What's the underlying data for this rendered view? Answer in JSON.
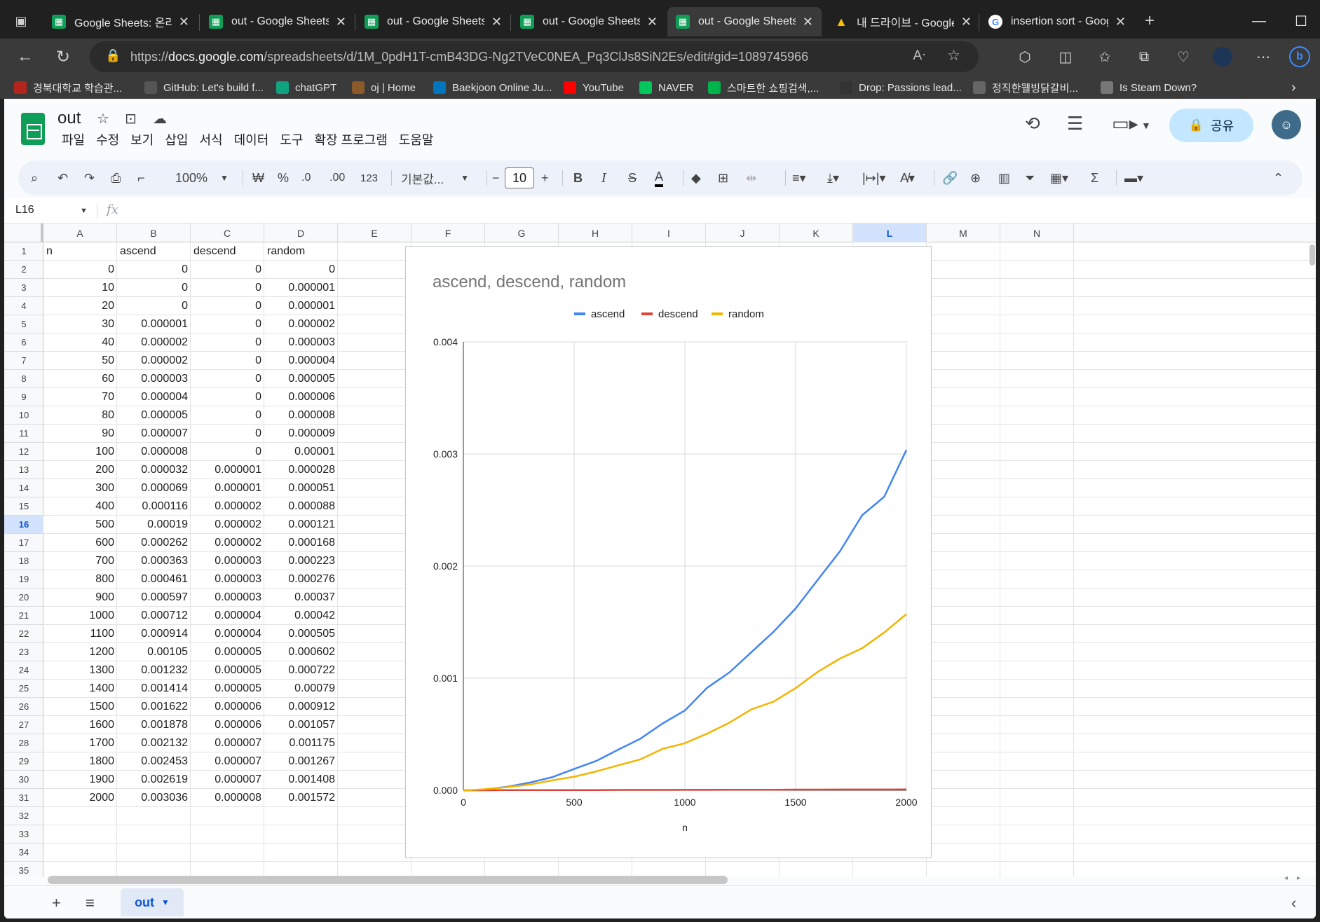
{
  "browser": {
    "tabs": [
      {
        "title": "Google Sheets: 온라인",
        "icon": "sheets",
        "active": false
      },
      {
        "title": "out - Google Sheets",
        "icon": "sheets",
        "active": false
      },
      {
        "title": "out - Google Sheets",
        "icon": "sheets",
        "active": false
      },
      {
        "title": "out - Google Sheets",
        "icon": "sheets",
        "active": false
      },
      {
        "title": "out - Google Sheets",
        "icon": "sheets",
        "active": true
      },
      {
        "title": "내 드라이브 - Google",
        "icon": "drive",
        "active": false
      },
      {
        "title": "insertion sort - Googl",
        "icon": "google",
        "active": false
      }
    ],
    "url_prefix": "https://",
    "url_domain": "docs.google.com",
    "url_path": "/spreadsheets/d/1M_0pdH1T-cmB43DG-Ng2TVeC0NEA_Pq3ClJs8SiN2Es/edit#gid=1089745966",
    "bookmarks": [
      {
        "label": "경북대학교 학습관...",
        "color": "#b3261e"
      },
      {
        "label": "GitHub: Let's build f...",
        "color": "#555555"
      },
      {
        "label": "chatGPT",
        "color": "#10a37f"
      },
      {
        "label": "oj | Home",
        "color": "#8b5a2b"
      },
      {
        "label": "Baekjoon Online Ju...",
        "color": "#0076c0"
      },
      {
        "label": "YouTube",
        "color": "#ff0000"
      },
      {
        "label": "NAVER",
        "color": "#03c75a"
      },
      {
        "label": "스마트한 쇼핑검색,...",
        "color": "#00b34a"
      },
      {
        "label": "Drop: Passions lead...",
        "color": "#333333"
      },
      {
        "label": "정직한웰빙닭갈비...",
        "color": "#666666"
      },
      {
        "label": "Is Steam Down?",
        "color": "#777777"
      }
    ]
  },
  "app": {
    "doc_title": "out",
    "menus": [
      "파일",
      "수정",
      "보기",
      "삽입",
      "서식",
      "데이터",
      "도구",
      "확장 프로그램",
      "도움말"
    ],
    "share_label": "공유",
    "toolbar": {
      "zoom": "100%",
      "currency": "₩",
      "percent": "%",
      "dec_decrease": ".0",
      "dec_increase": ".00",
      "number_format": "123",
      "font": "기본값...",
      "font_size": "10"
    },
    "name_box": "L16",
    "fx_label": "fx",
    "sheet_name": "out"
  },
  "grid": {
    "columns": [
      "A",
      "B",
      "C",
      "D",
      "E",
      "F",
      "G",
      "H",
      "I",
      "J",
      "K",
      "L",
      "M",
      "N"
    ],
    "selected_column": "L",
    "selected_row": 16,
    "row_count": 35,
    "header": [
      "n",
      "ascend",
      "descend",
      "random"
    ],
    "rows": [
      [
        "0",
        "0",
        "0",
        "0"
      ],
      [
        "10",
        "0",
        "0",
        "0.000001"
      ],
      [
        "20",
        "0",
        "0",
        "0.000001"
      ],
      [
        "30",
        "0.000001",
        "0",
        "0.000002"
      ],
      [
        "40",
        "0.000002",
        "0",
        "0.000003"
      ],
      [
        "50",
        "0.000002",
        "0",
        "0.000004"
      ],
      [
        "60",
        "0.000003",
        "0",
        "0.000005"
      ],
      [
        "70",
        "0.000004",
        "0",
        "0.000006"
      ],
      [
        "80",
        "0.000005",
        "0",
        "0.000008"
      ],
      [
        "90",
        "0.000007",
        "0",
        "0.000009"
      ],
      [
        "100",
        "0.000008",
        "0",
        "0.00001"
      ],
      [
        "200",
        "0.000032",
        "0.000001",
        "0.000028"
      ],
      [
        "300",
        "0.000069",
        "0.000001",
        "0.000051"
      ],
      [
        "400",
        "0.000116",
        "0.000002",
        "0.000088"
      ],
      [
        "500",
        "0.00019",
        "0.000002",
        "0.000121"
      ],
      [
        "600",
        "0.000262",
        "0.000002",
        "0.000168"
      ],
      [
        "700",
        "0.000363",
        "0.000003",
        "0.000223"
      ],
      [
        "800",
        "0.000461",
        "0.000003",
        "0.000276"
      ],
      [
        "900",
        "0.000597",
        "0.000003",
        "0.00037"
      ],
      [
        "1000",
        "0.000712",
        "0.000004",
        "0.00042"
      ],
      [
        "1100",
        "0.000914",
        "0.000004",
        "0.000505"
      ],
      [
        "1200",
        "0.00105",
        "0.000005",
        "0.000602"
      ],
      [
        "1300",
        "0.001232",
        "0.000005",
        "0.000722"
      ],
      [
        "1400",
        "0.001414",
        "0.000005",
        "0.00079"
      ],
      [
        "1500",
        "0.001622",
        "0.000006",
        "0.000912"
      ],
      [
        "1600",
        "0.001878",
        "0.000006",
        "0.001057"
      ],
      [
        "1700",
        "0.002132",
        "0.000007",
        "0.001175"
      ],
      [
        "1800",
        "0.002453",
        "0.000007",
        "0.001267"
      ],
      [
        "1900",
        "0.002619",
        "0.000007",
        "0.001408"
      ],
      [
        "2000",
        "0.003036",
        "0.000008",
        "0.001572"
      ]
    ]
  },
  "chart_data": {
    "type": "line",
    "title": "ascend, descend, random",
    "xlabel": "n",
    "ylabel": "",
    "x": [
      0,
      10,
      20,
      30,
      40,
      50,
      60,
      70,
      80,
      90,
      100,
      200,
      300,
      400,
      500,
      600,
      700,
      800,
      900,
      1000,
      1100,
      1200,
      1300,
      1400,
      1500,
      1600,
      1700,
      1800,
      1900,
      2000
    ],
    "xlim": [
      0,
      2000
    ],
    "ylim": [
      0,
      0.004
    ],
    "xticks": [
      "0",
      "500",
      "1000",
      "1500",
      "2000"
    ],
    "yticks": [
      "0.000",
      "0.001",
      "0.002",
      "0.003",
      "0.004"
    ],
    "grid": true,
    "legend_position": "top",
    "series": [
      {
        "name": "ascend",
        "color": "#4285f4",
        "values": [
          0,
          0,
          0,
          1e-06,
          2e-06,
          2e-06,
          3e-06,
          4e-06,
          5e-06,
          7e-06,
          8e-06,
          3.2e-05,
          6.9e-05,
          0.000116,
          0.00019,
          0.000262,
          0.000363,
          0.000461,
          0.000597,
          0.000712,
          0.000914,
          0.00105,
          0.001232,
          0.001414,
          0.001622,
          0.001878,
          0.002132,
          0.002453,
          0.002619,
          0.003036
        ]
      },
      {
        "name": "descend",
        "color": "#db4437",
        "values": [
          0,
          0,
          0,
          0,
          0,
          0,
          0,
          0,
          0,
          0,
          0,
          1e-06,
          1e-06,
          2e-06,
          2e-06,
          2e-06,
          3e-06,
          3e-06,
          3e-06,
          4e-06,
          4e-06,
          5e-06,
          5e-06,
          5e-06,
          6e-06,
          6e-06,
          7e-06,
          7e-06,
          7e-06,
          8e-06
        ]
      },
      {
        "name": "random",
        "color": "#f4b400",
        "values": [
          0,
          1e-06,
          1e-06,
          2e-06,
          3e-06,
          4e-06,
          5e-06,
          6e-06,
          8e-06,
          9e-06,
          1e-05,
          2.8e-05,
          5.1e-05,
          8.8e-05,
          0.000121,
          0.000168,
          0.000223,
          0.000276,
          0.00037,
          0.00042,
          0.000505,
          0.000602,
          0.000722,
          0.00079,
          0.000912,
          0.001057,
          0.001175,
          0.001267,
          0.001408,
          0.001572
        ]
      }
    ]
  }
}
